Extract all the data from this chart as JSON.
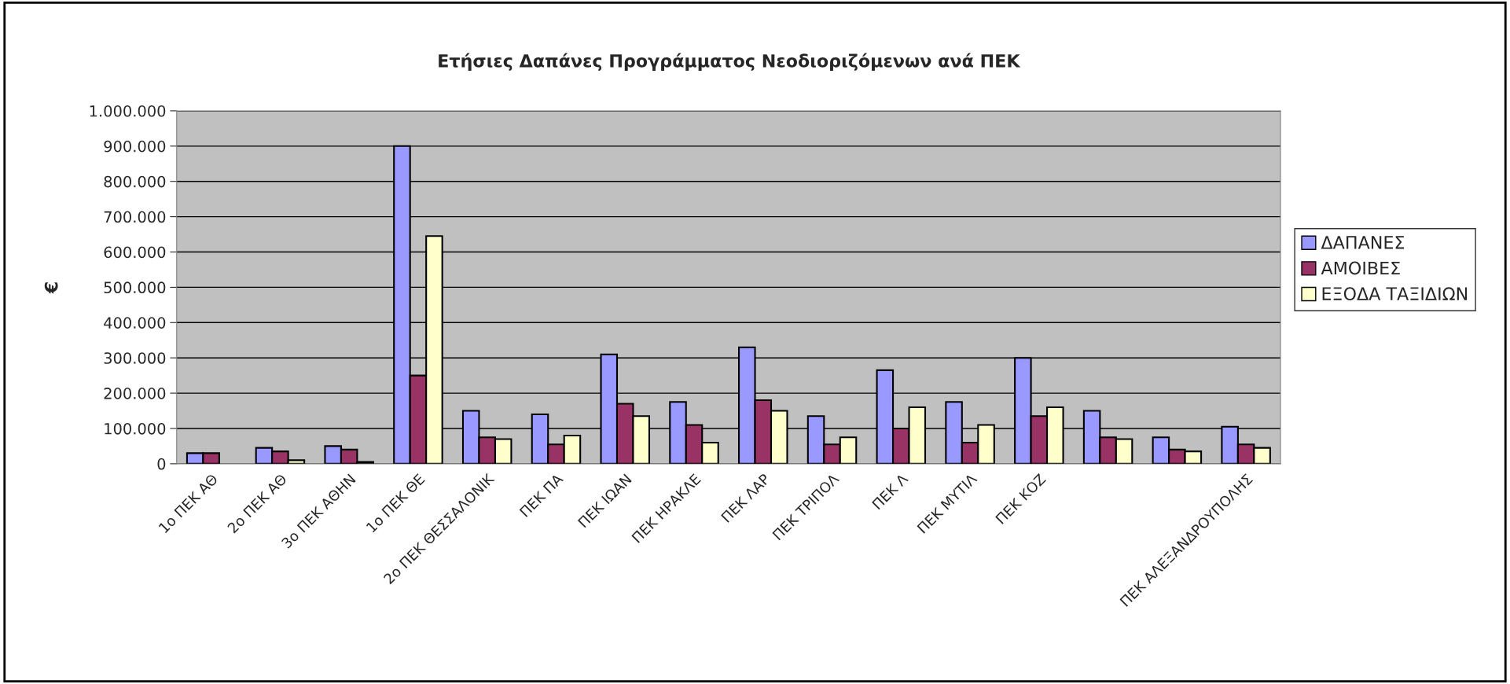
{
  "chart_data": {
    "type": "bar",
    "title": "Ετήσιες Δαπάνες Προγράμματος Νεοδιοριζόμενων ανά ΠΕΚ",
    "ylabel": "€",
    "categories": [
      "1ο ΠΕΚ ΑΘ",
      "2ο ΠΕΚ ΑΘ",
      "3ο ΠΕΚ ΑΘΗΝ",
      "1ο ΠΕΚ ΘΕ",
      "2ο ΠΕΚ ΘΕΣΣΑΛΟΝΙΚ",
      "ΠΕΚ ΠΑ",
      "ΠΕΚ ΙΩΑΝ",
      "ΠΕΚ ΗΡΑΚΛΕ",
      "ΠΕΚ ΛΑΡ",
      "ΠΕΚ ΤΡΙΠΟΛ",
      "ΠΕΚ Λ",
      "ΠΕΚ ΜΥΤΙΛ",
      "ΠΕΚ ΚΟΖ",
      null,
      null,
      "ΠΕΚ ΑΛΕΞΑΝΔΡΟΥΠΟΛΗΣ"
    ],
    "series": [
      {
        "name": "ΔΑΠΑΝΕΣ",
        "color": "#9999ff",
        "values": [
          30000,
          45000,
          50000,
          900000,
          150000,
          140000,
          310000,
          175000,
          330000,
          135000,
          265000,
          175000,
          300000,
          150000,
          75000,
          105000
        ]
      },
      {
        "name": "ΑΜΟΙΒΕΣ",
        "color": "#993366",
        "values": [
          30000,
          35000,
          40000,
          250000,
          75000,
          55000,
          170000,
          110000,
          180000,
          55000,
          100000,
          60000,
          135000,
          75000,
          40000,
          55000
        ]
      },
      {
        "name": "ΕΞΟΔΑ ΤΑΞΙΔΙΩΝ",
        "color": "#ffffcc",
        "values": [
          null,
          10000,
          5000,
          645000,
          70000,
          80000,
          135000,
          60000,
          150000,
          75000,
          160000,
          110000,
          160000,
          70000,
          35000,
          45000
        ]
      }
    ],
    "ylim": [
      0,
      1000000
    ],
    "yticks": [
      {
        "value": 0,
        "label": "0"
      },
      {
        "value": 100000,
        "label": "100.000"
      },
      {
        "value": 200000,
        "label": "200.000"
      },
      {
        "value": 300000,
        "label": "300.000"
      },
      {
        "value": 400000,
        "label": "400.000"
      },
      {
        "value": 500000,
        "label": "500.000"
      },
      {
        "value": 600000,
        "label": "600.000"
      },
      {
        "value": 700000,
        "label": "700.000"
      },
      {
        "value": 800000,
        "label": "800.000"
      },
      {
        "value": 900000,
        "label": "900.000"
      },
      {
        "value": 1000000,
        "label": "1.000.000"
      }
    ],
    "grid": "y",
    "legend": "right"
  }
}
